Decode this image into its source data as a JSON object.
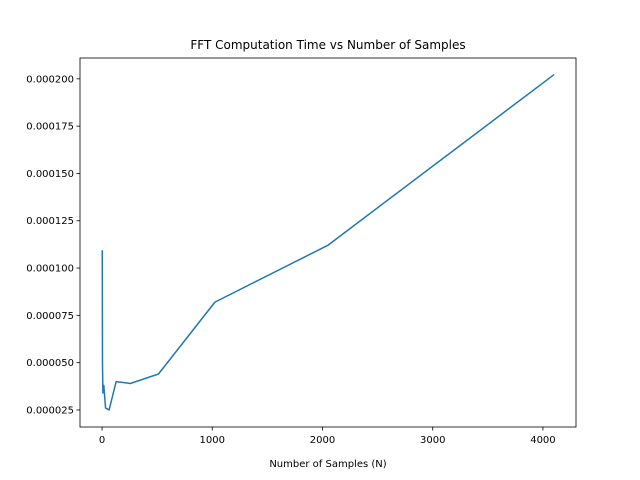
{
  "chart_data": {
    "type": "line",
    "title": "FFT Computation Time vs Number of Samples",
    "xlabel": "Number of Samples (N)",
    "ylabel": "",
    "xlim": [
      -200,
      4300
    ],
    "ylim": [
      1.6e-05,
      0.000211
    ],
    "x_ticks": [
      0,
      1000,
      2000,
      3000,
      4000
    ],
    "x_tick_labels": [
      "0",
      "1000",
      "2000",
      "3000",
      "4000"
    ],
    "y_ticks": [
      2.5e-05,
      5e-05,
      7.5e-05,
      0.0001,
      0.000125,
      0.00015,
      0.000175,
      0.0002
    ],
    "y_tick_labels": [
      "0.000025",
      "0.000050",
      "0.000075",
      "0.000100",
      "0.000125",
      "0.000150",
      "0.000175",
      "0.000200"
    ],
    "grid": false,
    "legend": "none",
    "colors": {
      "line": "#1f77b4",
      "axes": "#000000",
      "background": "#ffffff"
    },
    "series": [
      {
        "x": [
          2,
          4,
          8,
          16,
          32,
          64,
          128,
          256,
          512,
          1024,
          2048,
          4096
        ],
        "values": [
          0.000109,
          4.9e-05,
          3.4e-05,
          3.8e-05,
          2.6e-05,
          2.5e-05,
          4e-05,
          3.9e-05,
          4.4e-05,
          8.2e-05,
          0.000112,
          0.000202
        ]
      }
    ]
  }
}
